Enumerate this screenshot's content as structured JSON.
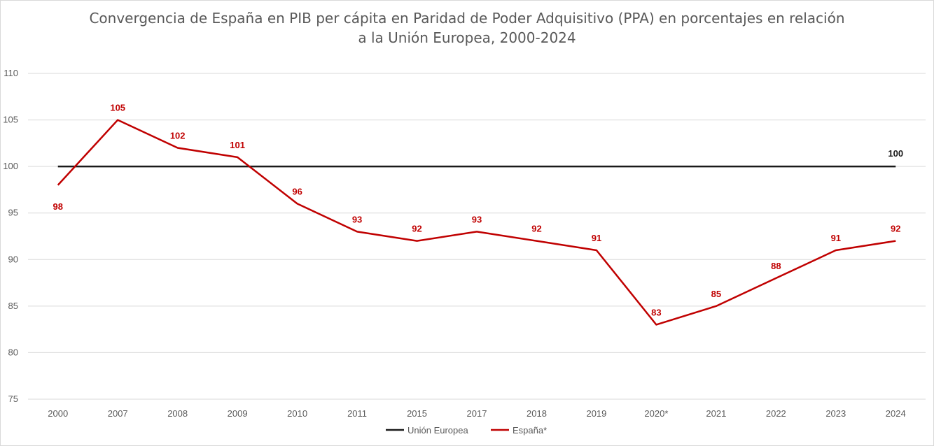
{
  "chart_data": {
    "type": "line",
    "title_line1": "Convergencia de España en PIB per cápita en Paridad de Poder Adquisitivo (PPA) en porcentajes en relación",
    "title_line2": "a la Unión Europea, 2000-2024",
    "categories": [
      "2000",
      "2007",
      "2008",
      "2009",
      "2010",
      "2011",
      "2015",
      "2017",
      "2018",
      "2019",
      "2020*",
      "2021",
      "2022",
      "2023",
      "2024"
    ],
    "ylim": [
      75,
      110
    ],
    "yticks": [
      75,
      80,
      85,
      90,
      95,
      100,
      105,
      110
    ],
    "grid": true,
    "legend_position": "bottom",
    "series": [
      {
        "name": "Unión Europea",
        "color": "#1a1a1a",
        "values": [
          100,
          100,
          100,
          100,
          100,
          100,
          100,
          100,
          100,
          100,
          100,
          100,
          100,
          100,
          100
        ],
        "data_labels": [
          null,
          null,
          null,
          null,
          null,
          null,
          null,
          null,
          null,
          null,
          null,
          null,
          null,
          null,
          "100"
        ]
      },
      {
        "name": "España*",
        "color": "#c00000",
        "values": [
          98,
          105,
          102,
          101,
          96,
          93,
          92,
          93,
          92,
          91,
          83,
          85,
          88,
          91,
          92
        ],
        "data_labels": [
          "98",
          "105",
          "102",
          "101",
          "96",
          "93",
          "92",
          "93",
          "92",
          "91",
          "83",
          "85",
          "88",
          "91",
          "92"
        ]
      }
    ]
  }
}
